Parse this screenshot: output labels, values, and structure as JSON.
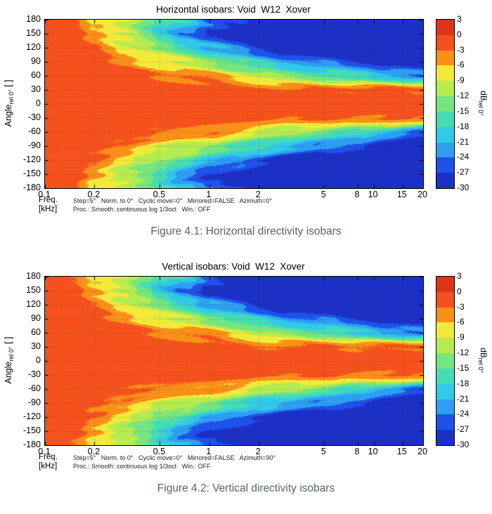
{
  "chart_data": [
    {
      "type": "heatmap",
      "title": "Horizontal isobars: Void  W12  Xover",
      "caption": "Figure 4.1: Horizontal directivity isobars",
      "xlabel_line1": "Freq.",
      "xlabel_line2": "[kHz]",
      "ylabel": {
        "main": "Angle",
        "sub": "rel 0°",
        "tail": " [ ]"
      },
      "settings_line1": "Step=5°   Norm. to 0°   Cyclic move=0°   Mirrored=FALSE   Azimuth=0°",
      "settings_line2": "Proc.: Smooth: continuous log 1/3oct   Win.: OFF",
      "x_axis": {
        "scale": "log",
        "range": [
          0.1,
          20
        ],
        "tick_values": [
          0.1,
          0.2,
          0.5,
          1,
          2,
          5,
          8,
          10,
          15,
          20
        ],
        "tick_labels": [
          "0.1",
          "0.2",
          "0.5",
          "1",
          "2",
          "5",
          "8",
          "10",
          "15",
          "20"
        ]
      },
      "y_axis": {
        "range": [
          -180,
          180
        ],
        "tick_values": [
          180,
          150,
          120,
          90,
          60,
          30,
          0,
          -30,
          -60,
          -90,
          -120,
          -150,
          -180
        ]
      },
      "colorbar": {
        "label_main": "dB",
        "label_sub": "rel 0°",
        "levels": [
          3,
          0,
          -3,
          -6,
          -9,
          -12,
          -15,
          -18,
          -21,
          -24,
          -27,
          -30
        ],
        "band_colors": [
          "#e03318",
          "#f4511c",
          "#fb9018",
          "#f2ea3a",
          "#b5ec51",
          "#74e57f",
          "#45dcb5",
          "#32c8e8",
          "#2d9ff2",
          "#1f52ea",
          "#1d30c6"
        ]
      },
      "grid_data": {
        "freqs_khz": [
          0.1,
          0.15,
          0.2,
          0.3,
          0.4,
          0.5,
          0.7,
          1,
          1.5,
          2,
          3,
          5,
          8,
          12,
          20
        ],
        "angles_deg": [
          0,
          30,
          60,
          90,
          120,
          150,
          180
        ],
        "attenuation_db_rows": [
          [
            0,
            0,
            0,
            0,
            0,
            0,
            0
          ],
          [
            0,
            0,
            0,
            0.5,
            1,
            1.5,
            2
          ],
          [
            0,
            0,
            0.5,
            1.5,
            3,
            5,
            6
          ],
          [
            0,
            0.5,
            1.5,
            4,
            7.5,
            10,
            9
          ],
          [
            0,
            0.5,
            2.5,
            6,
            10,
            14,
            12
          ],
          [
            0,
            1,
            3.5,
            7.5,
            13,
            18,
            15
          ],
          [
            0,
            1,
            3.5,
            9.5,
            16,
            23,
            19
          ],
          [
            0,
            1.5,
            4,
            12,
            20,
            28,
            24
          ],
          [
            0,
            2,
            7,
            15,
            23,
            30,
            27
          ],
          [
            0,
            2,
            9,
            18,
            26,
            32,
            30
          ],
          [
            0,
            2.5,
            12,
            21,
            29,
            34,
            33
          ],
          [
            0,
            2,
            14,
            24,
            31,
            35,
            34
          ],
          [
            0,
            2.5,
            17,
            27,
            33,
            36,
            35
          ],
          [
            0,
            2.5,
            20,
            30,
            34,
            36,
            36
          ],
          [
            0,
            3,
            24,
            32,
            35,
            37,
            37
          ]
        ]
      }
    },
    {
      "type": "heatmap",
      "title": "Vertical isobars: Void  W12  Xover",
      "caption": "Figure 4.2: Vertical directivity isobars",
      "xlabel_line1": "Freq.",
      "xlabel_line2": "[kHz]",
      "ylabel": {
        "main": "Angle",
        "sub": "rel 0°",
        "tail": " [ ]"
      },
      "settings_line1": "Step=5°   Norm. to 0°   Cyclic move=0°   Mirrored=FALSE   Azimuth=90°",
      "settings_line2": "Proc.: Smooth: continuous log 1/3oct   Win.: OFF",
      "x_axis": {
        "scale": "log",
        "range": [
          0.1,
          20
        ],
        "tick_values": [
          0.1,
          0.2,
          0.5,
          1,
          2,
          5,
          8,
          10,
          15,
          20
        ],
        "tick_labels": [
          "0.1",
          "0.2",
          "0.5",
          "1",
          "2",
          "5",
          "8",
          "10",
          "15",
          "20"
        ]
      },
      "y_axis": {
        "range": [
          -180,
          180
        ],
        "tick_values": [
          180,
          150,
          120,
          90,
          60,
          30,
          0,
          -30,
          -60,
          -90,
          -120,
          -150,
          -180
        ]
      },
      "colorbar": {
        "label_main": "dB",
        "label_sub": "rel 0°",
        "levels": [
          3,
          0,
          -3,
          -6,
          -9,
          -12,
          -15,
          -18,
          -21,
          -24,
          -27,
          -30
        ],
        "band_colors": [
          "#e03318",
          "#f4511c",
          "#fb9018",
          "#f2ea3a",
          "#b5ec51",
          "#74e57f",
          "#45dcb5",
          "#32c8e8",
          "#2d9ff2",
          "#1f52ea",
          "#1d30c6"
        ]
      },
      "grid_data": {
        "freqs_khz": [
          0.1,
          0.15,
          0.2,
          0.3,
          0.4,
          0.5,
          0.7,
          1,
          1.5,
          2,
          3,
          5,
          8,
          12,
          20
        ],
        "angles_deg": [
          0,
          30,
          60,
          90,
          120,
          150,
          180
        ],
        "attenuation_db_rows": [
          [
            0,
            0,
            0,
            0,
            0,
            0,
            0
          ],
          [
            0,
            0,
            0,
            0.5,
            1,
            2,
            2.5
          ],
          [
            0,
            0,
            0.5,
            2,
            3.5,
            5.5,
            6
          ],
          [
            0,
            0.5,
            2,
            4.5,
            8,
            10.5,
            9.5
          ],
          [
            0,
            1,
            3,
            6.5,
            11,
            15,
            12.5
          ],
          [
            0,
            1,
            4,
            8,
            14,
            19,
            16
          ],
          [
            0,
            1.5,
            4,
            10,
            17,
            24,
            20
          ],
          [
            0,
            1.5,
            4.5,
            13,
            21,
            29,
            25
          ],
          [
            0,
            2,
            7.5,
            16,
            24,
            31,
            28
          ],
          [
            0,
            2.5,
            10,
            19,
            27,
            33,
            31
          ],
          [
            0,
            2.5,
            12,
            22,
            29,
            34,
            33
          ],
          [
            0,
            2,
            14,
            24,
            31,
            35,
            34
          ],
          [
            0,
            3,
            18,
            27,
            33,
            36,
            35
          ],
          [
            0,
            3,
            21,
            30,
            34,
            36,
            36
          ],
          [
            0,
            3,
            24,
            32,
            35,
            37,
            37
          ]
        ]
      }
    }
  ]
}
